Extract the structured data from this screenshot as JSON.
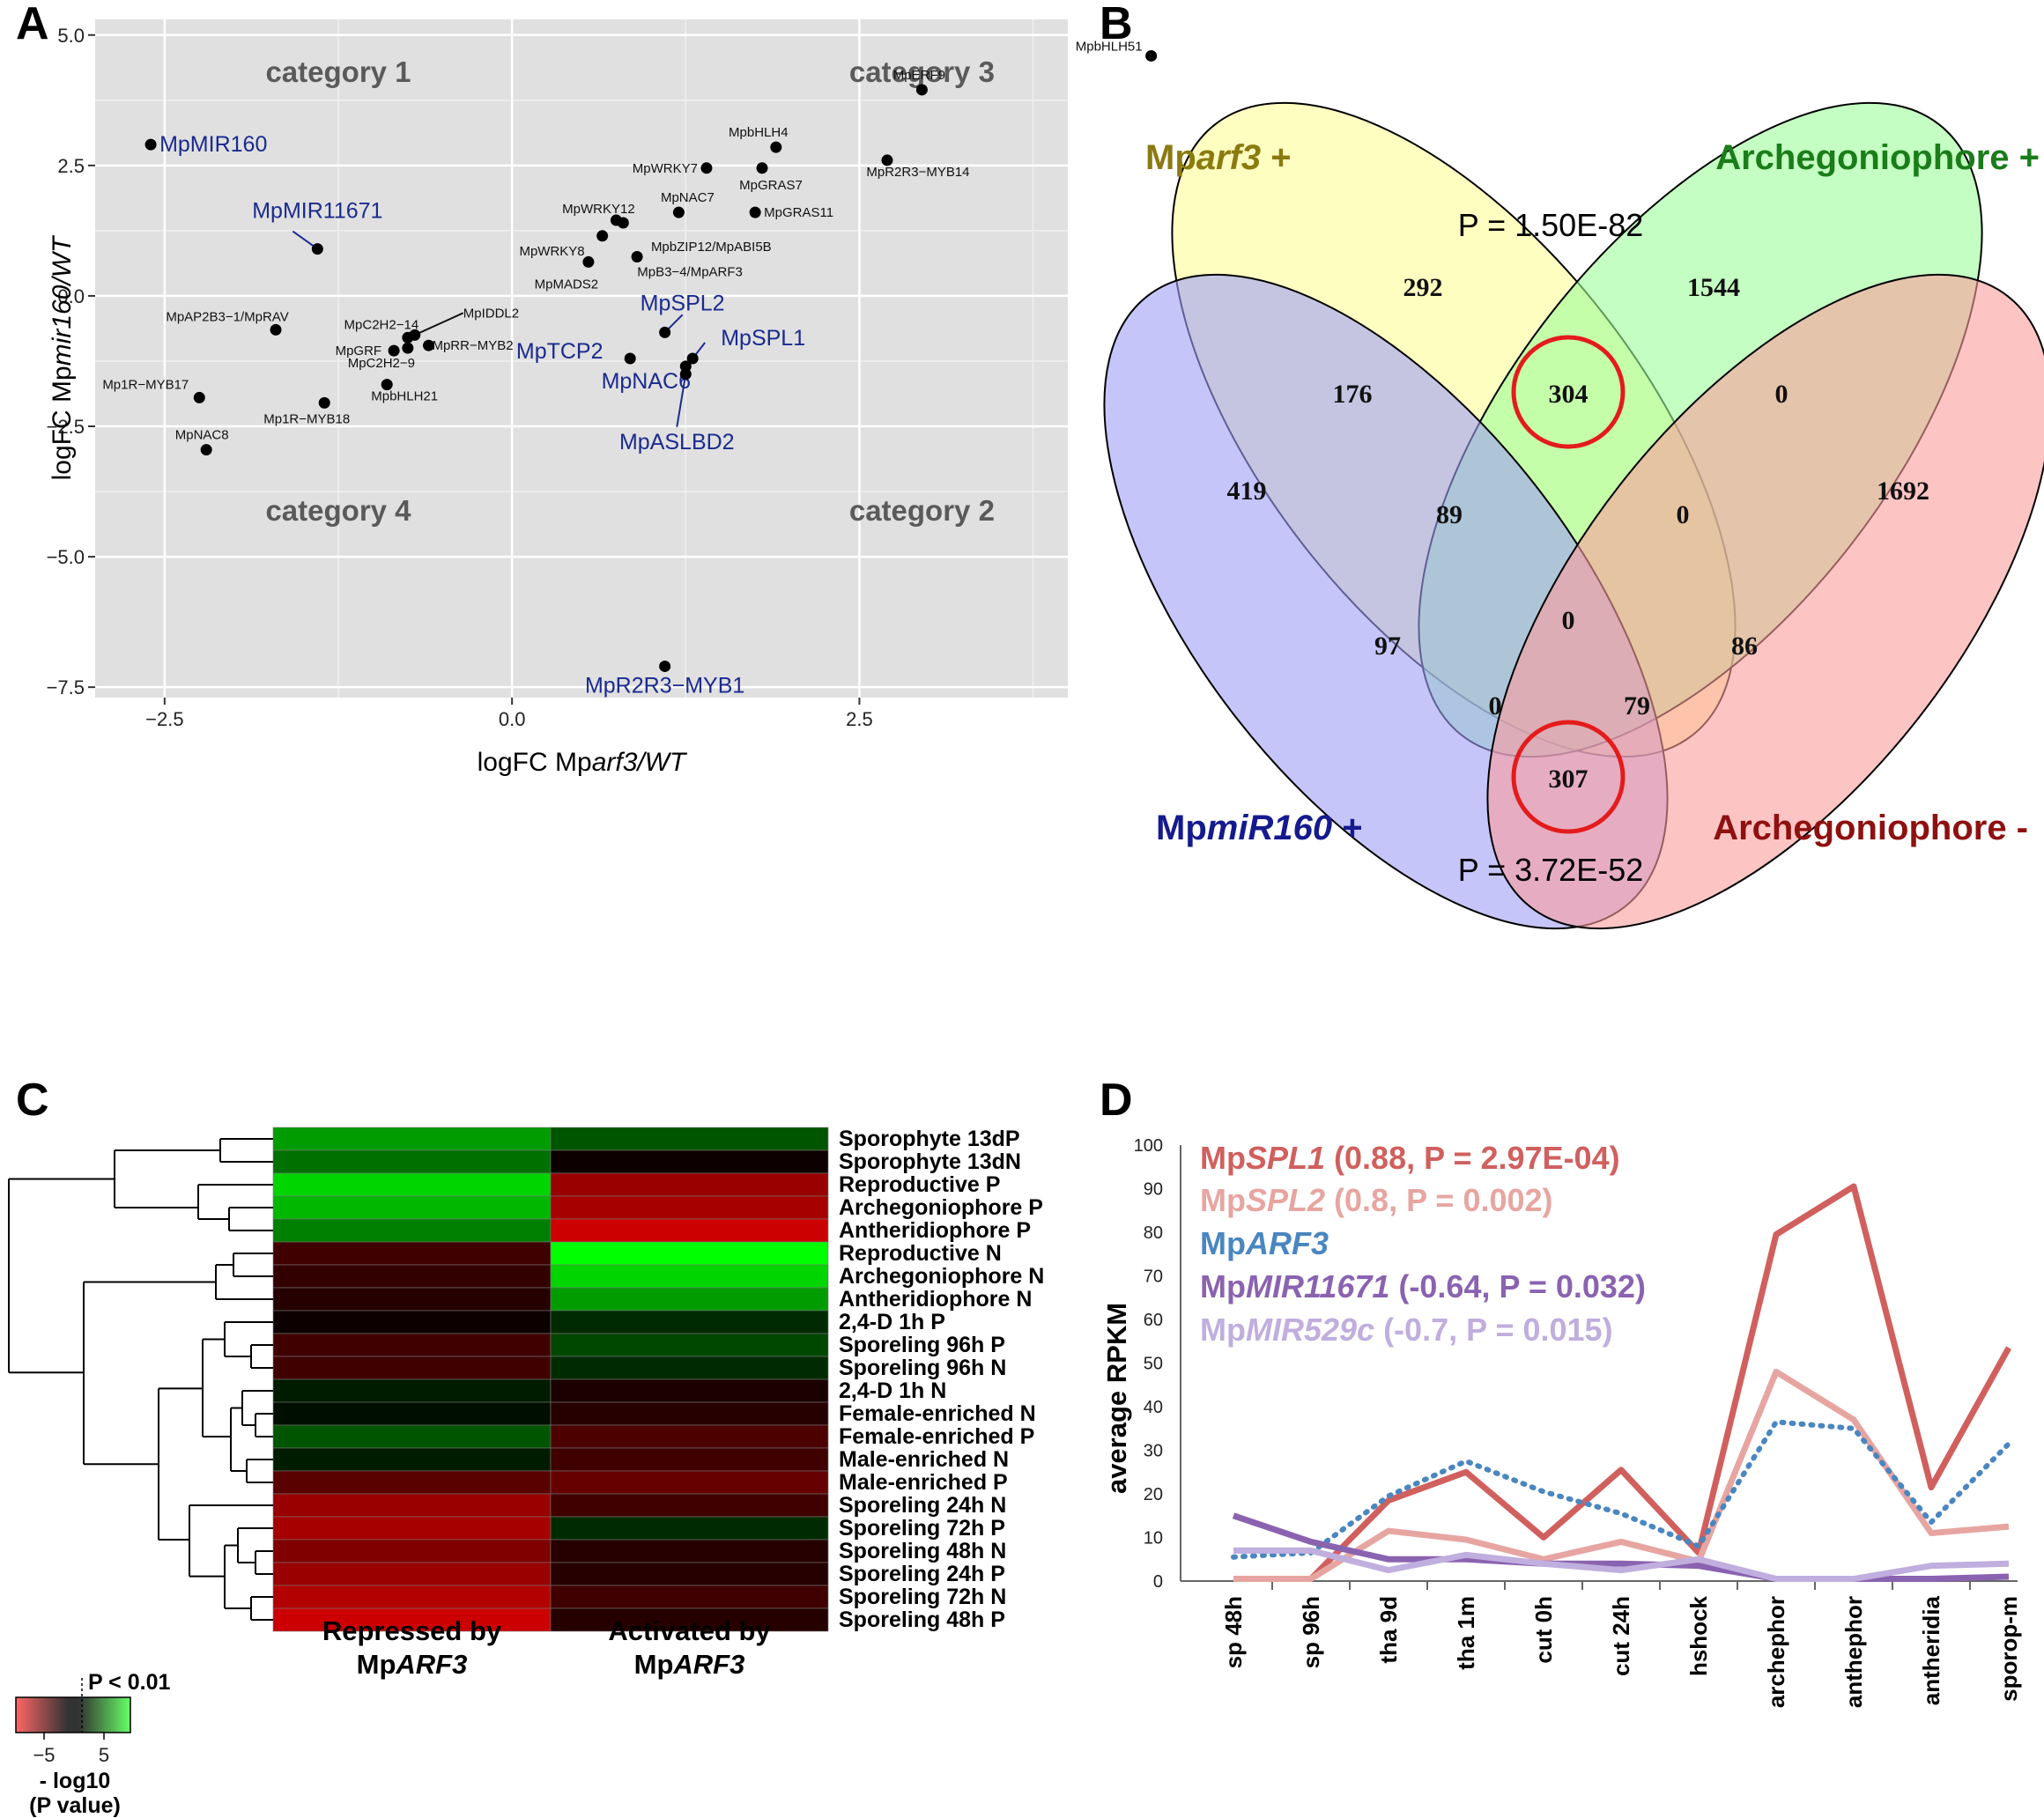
{
  "panels": {
    "A": "A",
    "B": "B",
    "C": "C",
    "D": "D"
  },
  "chart_data": [
    {
      "panel": "A",
      "type": "scatter",
      "xlabel_prefix": "logFC Mp",
      "xlabel_italic": "arf3/WT",
      "ylabel_prefix": "logFC Mp",
      "ylabel_italic": "mir160/WT",
      "xlim": [
        -3.0,
        4.0
      ],
      "ylim": [
        -7.7,
        5.3
      ],
      "xticks": [
        -2.5,
        0.0,
        2.5
      ],
      "xtick_labels": [
        "−2.5",
        "0.0",
        "2.5"
      ],
      "yticks": [
        5.0,
        2.5,
        0.0,
        -2.5,
        -5.0,
        -7.5
      ],
      "ytick_labels": [
        "5.0",
        "2.5",
        "0.0",
        "−2.5",
        "−5.0",
        "−7.5"
      ],
      "grid": true,
      "background": "#e0e0e0",
      "categories_text": [
        {
          "label": "category 1",
          "x": -1.25,
          "y": 4.3
        },
        {
          "label": "category 3",
          "x": 2.95,
          "y": 4.3
        },
        {
          "label": "category 4",
          "x": -1.25,
          "y": -4.1
        },
        {
          "label": "category 2",
          "x": 2.95,
          "y": -4.1
        }
      ],
      "points": [
        {
          "label": "MpbHLH51",
          "x": 4.6,
          "y": 4.6,
          "hl": false
        },
        {
          "label": "MpERF9",
          "x": 2.95,
          "y": 3.95,
          "hl": false
        },
        {
          "label": "MpMIR160",
          "x": -2.6,
          "y": 2.9,
          "hl": true
        },
        {
          "label": "MpbHLH4",
          "x": 1.9,
          "y": 2.85,
          "hl": false
        },
        {
          "label": "MpR2R3−MYB14",
          "x": 2.7,
          "y": 2.6,
          "hl": false
        },
        {
          "label": "MpWRKY7",
          "x": 1.4,
          "y": 2.45,
          "hl": false
        },
        {
          "label": "MpGRAS7",
          "x": 1.8,
          "y": 2.45,
          "hl": false
        },
        {
          "label": "MpWRKY12",
          "x": 0.75,
          "y": 1.45,
          "hl": false
        },
        {
          "label": "MpNAC7",
          "x": 1.2,
          "y": 1.6,
          "hl": false
        },
        {
          "label": "MpGRAS11",
          "x": 1.75,
          "y": 1.6,
          "hl": false
        },
        {
          "label": "MpbZIP12/MpABI5B",
          "x": 0.8,
          "y": 1.4,
          "hl": false
        },
        {
          "label": "MpWRKY8",
          "x": 0.65,
          "y": 1.15,
          "hl": false
        },
        {
          "label": "MpMIR11671",
          "x": -1.4,
          "y": 0.9,
          "hl": true
        },
        {
          "label": "MpB3−4/MpARF3",
          "x": 0.9,
          "y": 0.75,
          "hl": false
        },
        {
          "label": "MpMADS2",
          "x": 0.55,
          "y": 0.65,
          "hl": false
        },
        {
          "label": "MpSPL2",
          "x": 1.1,
          "y": -0.7,
          "hl": true
        },
        {
          "label": "MpAP2B3−1/MpRAV",
          "x": -1.7,
          "y": -0.65,
          "hl": false
        },
        {
          "label": "MpC2H2−14",
          "x": -0.75,
          "y": -0.8,
          "hl": false
        },
        {
          "label": "MpIDDL2",
          "x": -0.7,
          "y": -0.75,
          "hl": false
        },
        {
          "label": "MpRR−MYB2",
          "x": -0.6,
          "y": -0.95,
          "hl": false
        },
        {
          "label": "MpGRF",
          "x": -0.85,
          "y": -1.05,
          "hl": false
        },
        {
          "label": "MpC2H2−9",
          "x": -0.75,
          "y": -1.0,
          "hl": false
        },
        {
          "label": "MpTCP2",
          "x": 0.85,
          "y": -1.2,
          "hl": true
        },
        {
          "label": "MpSPL1",
          "x": 1.3,
          "y": -1.2,
          "hl": true
        },
        {
          "label": "MpNAC6",
          "x": 1.25,
          "y": -1.35,
          "hl": true
        },
        {
          "label": "MpASLBD2",
          "x": 1.25,
          "y": -1.5,
          "hl": true
        },
        {
          "label": "MpbHLH21",
          "x": -0.9,
          "y": -1.7,
          "hl": false
        },
        {
          "label": "Mp1R−MYB17",
          "x": -2.25,
          "y": -1.95,
          "hl": false
        },
        {
          "label": "Mp1R−MYB18",
          "x": -1.35,
          "y": -2.05,
          "hl": false
        },
        {
          "label": "MpNAC8",
          "x": -2.2,
          "y": -2.95,
          "hl": false
        },
        {
          "label": "MpR2R3−MYB1",
          "x": 1.1,
          "y": -7.1,
          "hl": true
        }
      ]
    },
    {
      "panel": "B",
      "type": "venn",
      "sets": [
        {
          "name_prefix": "Mp",
          "name_italic": "arf3",
          "name_suffix": " +",
          "color": "#fffe97",
          "text_color": "#8a7a10"
        },
        {
          "name_prefix": "Archegoniophore +",
          "name_italic": "",
          "name_suffix": "",
          "color": "#9dfd9a",
          "text_color": "#1a7d1a"
        },
        {
          "name_prefix": "Mp",
          "name_italic": "miR160",
          "name_suffix": " +",
          "color": "#9f9ff7",
          "text_color": "#151a8f"
        },
        {
          "name_prefix": "Archegoniophore -",
          "name_italic": "",
          "name_suffix": "",
          "color": "#fc9d9d",
          "text_color": "#8f1010"
        }
      ],
      "counts": [
        "292",
        "1544",
        "419",
        "1692",
        "176",
        "304",
        "0",
        "89",
        "0",
        "0",
        "97",
        "86",
        "0",
        "79",
        "307"
      ],
      "p_top": "P = 1.50E-82",
      "p_bottom": "P = 3.72E-52"
    },
    {
      "panel": "C",
      "type": "heatmap",
      "columns": [
        "Repressed by\nMpARF3",
        "Activated by\nMpARF3"
      ],
      "col_line1": [
        "Repressed by",
        "Activated by"
      ],
      "col_line2_prefix": [
        "Mp",
        "Mp"
      ],
      "col_line2_italic": [
        "ARF3",
        "ARF3"
      ],
      "rows": [
        "Sporophyte 13dP",
        "Sporophyte 13dN",
        "Reproductive P",
        "Archegoniophore P",
        "Antheridiophore P",
        "Reproductive N",
        "Archegoniophore N",
        "Antheridiophore N",
        "2,4-D 1h P",
        "Sporeling 96h P",
        "Sporeling 96h N",
        "2,4-D 1h N",
        "Female-enriched N",
        "Female-enriched P",
        "Male-enriched N",
        "Male-enriched P",
        "Sporeling 24h N",
        "Sporeling 72h P",
        "Sporeling 48h N",
        "Sporeling 24h P",
        "Sporeling 72h N",
        "Sporeling 48h P"
      ],
      "values": [
        [
          5.5,
          3
        ],
        [
          4,
          -0.5
        ],
        [
          7.5,
          -6
        ],
        [
          6.5,
          -6.5
        ],
        [
          4.5,
          -8
        ],
        [
          -2.5,
          9
        ],
        [
          -2,
          7.5
        ],
        [
          -1.5,
          5.5
        ],
        [
          -0.5,
          1.5
        ],
        [
          -2.5,
          2.5
        ],
        [
          -2.5,
          1.5
        ],
        [
          1,
          -1
        ],
        [
          0.5,
          -1.5
        ],
        [
          3,
          -3
        ],
        [
          1,
          -2.5
        ],
        [
          -3.5,
          -4
        ],
        [
          -6,
          -2.5
        ],
        [
          -6.5,
          1.5
        ],
        [
          -5,
          -1.5
        ],
        [
          -6,
          -1.5
        ],
        [
          -7,
          -2.5
        ],
        [
          -8,
          -1.5
        ]
      ],
      "legend": {
        "threshold_label": "P < 0.01",
        "ticks": [
          "−5",
          "5"
        ],
        "title_line1": "- log10",
        "title_line2": "(P value)"
      }
    },
    {
      "panel": "D",
      "type": "line",
      "ylabel": "average RPKM",
      "ylim": [
        0,
        100
      ],
      "yticks": [
        0,
        10,
        20,
        30,
        40,
        50,
        60,
        70,
        80,
        90,
        100
      ],
      "categories": [
        "sp 48h",
        "sp 96h",
        "tha 9d",
        "tha 1m",
        "cut 0h",
        "cut 24h",
        "hshock",
        "archephor",
        "anthephor",
        "antheridia",
        "sporop-m"
      ],
      "series": [
        {
          "name_prefix": "Mp",
          "name_italic": "SPL1",
          "name_suffix": " (0.88, P = 2.97E-04)",
          "color": "#d0605e",
          "dash": false,
          "values": [
            0.5,
            0.5,
            18.5,
            25,
            10,
            25.5,
            6.5,
            79.5,
            90.5,
            21.5,
            53.5
          ]
        },
        {
          "name_prefix": "Mp",
          "name_italic": "SPL2",
          "name_suffix": " (0.8, P = 0.002)",
          "color": "#e7a5a1",
          "dash": false,
          "values": [
            0.5,
            0.5,
            11.5,
            9.5,
            5,
            9,
            4.5,
            48,
            37,
            11,
            12.5
          ]
        },
        {
          "name_prefix": "Mp",
          "name_italic": "ARF3",
          "name_suffix": "",
          "color": "#4a86c0",
          "dash": true,
          "values": [
            5.5,
            6.5,
            19.5,
            27.5,
            20.5,
            15.5,
            8,
            36.5,
            35,
            13.5,
            31.5
          ]
        },
        {
          "name_prefix": "Mp",
          "name_italic": "MIR11671",
          "name_suffix": " (-0.64, P = 0.032)",
          "color": "#8a63b0",
          "dash": false,
          "values": [
            15,
            9,
            5,
            5,
            4,
            4,
            3.5,
            0.5,
            0.5,
            0.5,
            1
          ]
        },
        {
          "name_prefix": "Mp",
          "name_italic": "MIR529c",
          "name_suffix": " (-0.7, P = 0.015)",
          "color": "#c0aede",
          "dash": false,
          "values": [
            7,
            7,
            2.5,
            6,
            4,
            2.5,
            5,
            0.5,
            0.5,
            3.5,
            4
          ]
        }
      ]
    }
  ]
}
